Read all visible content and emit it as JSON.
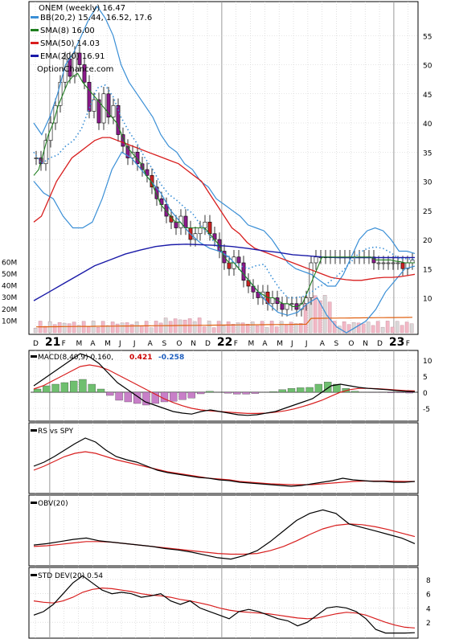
{
  "chart_data": [
    {
      "type": "candlestick",
      "title": "ONEM (weekly) 16.47",
      "watermark": "OptionChance.com",
      "y_ticks": [
        10,
        15,
        20,
        25,
        30,
        35,
        40,
        45,
        50,
        55
      ],
      "ylim": [
        4,
        60
      ],
      "volume_ticks": [
        "10M",
        "20M",
        "30M",
        "40M",
        "50M",
        "60M"
      ],
      "volume_ylim": [
        0,
        63
      ],
      "x_labels": [
        "D",
        "21",
        "F",
        "M",
        "A",
        "M",
        "J",
        "J",
        "A",
        "S",
        "O",
        "N",
        "D",
        "22",
        "F",
        "M",
        "A",
        "M",
        "J",
        "J",
        "A",
        "S",
        "O",
        "N",
        "D",
        "23",
        "F"
      ],
      "legend": [
        {
          "label": "BB(20,2) 15.44, 16.52, 17.6",
          "color": "#3a8fd6"
        },
        {
          "label": "SMA(8) 16.00",
          "color": "#1e7e1e"
        },
        {
          "label": "SMA(50) 14.03",
          "color": "#d81e1e"
        },
        {
          "label": "EMA(200) 16.91",
          "color": "#1a1aa8"
        }
      ],
      "close_weekly": [
        34,
        33,
        37,
        40,
        43,
        47,
        51,
        48,
        52,
        50,
        47,
        42,
        44,
        40,
        45,
        41,
        43,
        38,
        36,
        34,
        35,
        33,
        32,
        31,
        29,
        27,
        26,
        24,
        23,
        22,
        24,
        22,
        20,
        21,
        22,
        23,
        21,
        20,
        18,
        16,
        15,
        17,
        16,
        13,
        12,
        11,
        10,
        11,
        9,
        10,
        9,
        8,
        9,
        9,
        8,
        9,
        10,
        16,
        17,
        17,
        17,
        17,
        17,
        17,
        17,
        17,
        17,
        17,
        17,
        17,
        16,
        16,
        16,
        16,
        16,
        16,
        15,
        16,
        16.47
      ],
      "sma8": [
        31,
        32,
        35,
        38,
        40,
        43,
        45,
        47,
        48,
        48.5,
        47,
        46,
        45,
        44,
        43,
        42,
        41,
        40,
        38,
        36,
        35,
        34,
        33,
        31,
        30,
        28,
        26,
        25,
        24,
        23,
        23,
        22,
        22,
        22,
        22,
        22,
        21,
        20,
        19,
        17,
        16,
        16,
        15,
        14,
        13,
        12,
        11,
        10.5,
        10,
        10,
        9.5,
        9,
        9,
        8.5,
        8.5,
        9,
        11,
        13,
        15,
        17,
        17,
        17,
        17,
        17,
        17,
        17,
        17,
        17,
        17,
        17,
        16.5,
        16.5,
        16.5,
        16.5,
        16.3,
        16.2,
        16,
        16,
        16
      ],
      "sma50": [
        23,
        24,
        27,
        30,
        32,
        34,
        35,
        36,
        37,
        37.5,
        37.5,
        37,
        36.5,
        36,
        35.5,
        35,
        34.5,
        34,
        33.5,
        33,
        32,
        31,
        30,
        28,
        26,
        24,
        22,
        21,
        19.5,
        18.5,
        18,
        17.5,
        17,
        16.5,
        16,
        15.5,
        15,
        14.5,
        14,
        13.5,
        13.3,
        13.1,
        13,
        13,
        13.2,
        13.4,
        13.5,
        13.5,
        13.6,
        13.8,
        14.03
      ],
      "ema200": [
        9.5,
        11,
        12.5,
        14,
        15.5,
        16.5,
        17.5,
        18.2,
        18.8,
        19.1,
        19.2,
        19.1,
        19,
        18.8,
        18.5,
        18.1,
        17.8,
        17.4,
        17.2,
        17,
        16.9,
        16.9,
        16.9,
        16.9,
        16.9,
        16.91
      ],
      "bb_upper": [
        40,
        38,
        41,
        45,
        50,
        52,
        55,
        58,
        60,
        58,
        55,
        50,
        47,
        45,
        43,
        41,
        38,
        36,
        35,
        33,
        32,
        30,
        29,
        27,
        26,
        25,
        24,
        22.5,
        22,
        21.5,
        20,
        18,
        16,
        15,
        14.5,
        14,
        13,
        12,
        12,
        14,
        17,
        20,
        21.5,
        22,
        21.5,
        20,
        18,
        18,
        17.6
      ],
      "bb_lower": [
        30,
        28,
        27,
        24,
        22,
        22,
        23,
        27,
        32,
        35,
        34,
        32,
        30,
        28,
        25,
        23,
        21,
        19.5,
        18.5,
        18,
        17,
        15,
        13,
        11,
        9,
        7.5,
        7,
        7.5,
        9,
        10,
        7,
        5,
        4,
        5,
        6,
        8,
        11,
        13,
        15,
        15.44
      ]
    },
    {
      "type": "line",
      "title": "MACD(8,40,9) 0.160,",
      "values_text": [
        "0.421",
        "-0.258"
      ],
      "value_colors": [
        "#cc0000",
        "#1f5fbf"
      ],
      "y_ticks": [
        -5,
        0,
        5,
        10
      ],
      "ylim": [
        -8,
        12
      ],
      "macd": [
        2,
        4,
        6,
        8,
        10,
        12,
        11,
        9,
        6,
        3,
        1,
        -1,
        -3,
        -4,
        -5,
        -6,
        -6.5,
        -6.8,
        -6,
        -5.5,
        -6,
        -6.5,
        -7,
        -7.2,
        -7,
        -6.5,
        -6,
        -5,
        -4,
        -3,
        -2,
        0,
        2,
        2.5,
        2,
        1.5,
        1.2,
        1,
        0.8,
        0.5,
        0.3,
        0.16
      ],
      "signal": [
        1,
        2,
        3.5,
        5,
        6.5,
        8,
        8.5,
        8,
        7,
        5.5,
        4,
        2.5,
        1,
        -0.5,
        -2,
        -3.2,
        -4.2,
        -5,
        -5.5,
        -5.8,
        -6,
        -6.2,
        -6.4,
        -6.6,
        -6.6,
        -6.5,
        -6.2,
        -5.8,
        -5.2,
        -4.4,
        -3.5,
        -2.5,
        -1.2,
        0,
        0.8,
        1.2,
        1.2,
        1.1,
        0.9,
        0.7,
        0.5,
        0.42
      ],
      "histogram": [
        1,
        2,
        2.5,
        3,
        3.5,
        4,
        2.5,
        1,
        -1,
        -2.5,
        -3,
        -3.5,
        -4,
        -3.5,
        -3,
        -2.8,
        -2.3,
        -1.8,
        -0.5,
        0.3,
        0,
        -0.3,
        -0.6,
        -0.6,
        -0.4,
        0,
        0.2,
        0.8,
        1.2,
        1.4,
        1.5,
        2.5,
        3.2,
        2.5,
        1.2,
        0.3,
        0,
        -0.1,
        -0.1,
        -0.2,
        -0.2,
        -0.26
      ]
    },
    {
      "type": "line",
      "title": "RS vs SPY",
      "rs": [
        50,
        55,
        62,
        70,
        78,
        85,
        80,
        70,
        62,
        58,
        55,
        50,
        45,
        42,
        40,
        38,
        36,
        35,
        33,
        32,
        30,
        29,
        28,
        27,
        26,
        25,
        26,
        28,
        30,
        32,
        35,
        33,
        32,
        31,
        31,
        30,
        30,
        31
      ],
      "rs_ma": [
        45,
        50,
        56,
        62,
        66,
        68,
        66,
        62,
        58,
        55,
        52,
        49,
        46,
        43,
        41,
        39,
        37,
        35,
        34,
        33,
        31,
        30,
        29,
        28,
        27.5,
        27,
        27,
        27,
        28,
        29,
        30,
        31,
        31.5,
        31.5,
        31.5,
        31.3,
        31,
        31
      ]
    },
    {
      "type": "line",
      "title": "OBV(20)",
      "obv": [
        40,
        42,
        45,
        48,
        50,
        46,
        44,
        42,
        40,
        38,
        35,
        33,
        30,
        26,
        22,
        20,
        25,
        32,
        45,
        60,
        75,
        85,
        90,
        85,
        70,
        65,
        60,
        55,
        50,
        42
      ],
      "obv_ma": [
        38,
        39,
        41,
        43,
        45,
        45,
        44,
        42,
        40,
        38,
        36,
        34,
        32,
        30,
        28,
        27,
        27,
        28,
        32,
        38,
        46,
        55,
        63,
        68,
        70,
        69,
        66,
        62,
        57,
        52
      ]
    },
    {
      "type": "line",
      "title": "STD DEV(20) 0.54",
      "y_ticks": [
        2,
        4,
        6,
        8
      ],
      "ylim": [
        0,
        9
      ],
      "stddev": [
        3,
        3.5,
        4.5,
        6,
        7.5,
        8.5,
        7.5,
        6.5,
        6,
        6.2,
        6,
        5.5,
        5.7,
        6,
        5,
        4.5,
        5,
        4,
        3.5,
        3,
        2.5,
        3.5,
        3.8,
        3.5,
        3,
        2.5,
        2.2,
        1.5,
        2,
        3,
        4,
        4.2,
        4,
        3.5,
        2.5,
        1,
        0.5,
        0.5,
        0.5,
        0.54
      ],
      "stddev_ma": [
        5,
        4.8,
        4.7,
        5,
        5.5,
        6.2,
        6.6,
        6.8,
        6.7,
        6.5,
        6.3,
        6,
        5.8,
        5.7,
        5.5,
        5.2,
        5,
        4.7,
        4.4,
        4,
        3.7,
        3.5,
        3.4,
        3.3,
        3.2,
        3,
        2.8,
        2.6,
        2.5,
        2.6,
        2.9,
        3.2,
        3.4,
        3.3,
        3,
        2.5,
        2,
        1.6,
        1.3,
        1.2
      ]
    }
  ],
  "colors": {
    "up": "#1e7e1e",
    "down": "#8b1a8b",
    "red_line": "#d81e1e",
    "blue_line": "#1a1aa8",
    "bb": "#3a8fd6",
    "bb_mid": "#3a8fd6",
    "yellow": "#e8e020",
    "volume": "#f2b8c6",
    "volume_ma": "#e06010"
  }
}
